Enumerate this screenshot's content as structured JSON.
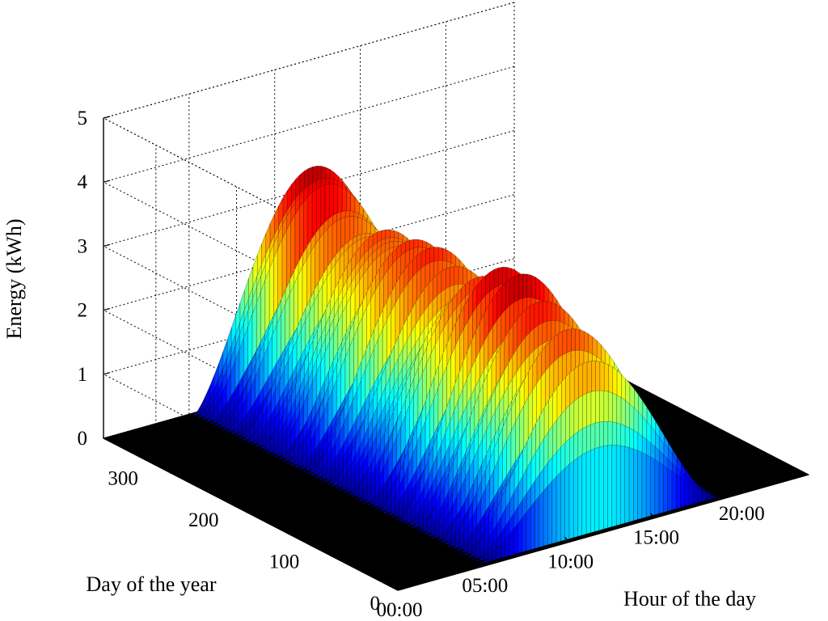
{
  "chart_data": {
    "type": "surface",
    "title": "",
    "zlabel": "Energy (kWh)",
    "ylabel": "Day of the year",
    "xlabel": "Hour of the day",
    "z_ticks": [
      "0",
      "1",
      "2",
      "3",
      "4",
      "5"
    ],
    "z_tick_values": [
      0,
      1,
      2,
      3,
      4,
      5
    ],
    "y_ticks": [
      "0",
      "100",
      "200",
      "300"
    ],
    "y_tick_values": [
      0,
      100,
      200,
      300
    ],
    "x_ticks": [
      "00:00",
      "05:00",
      "10:00",
      "15:00",
      "20:00"
    ],
    "x_tick_values": [
      0,
      5,
      10,
      15,
      20
    ],
    "xlim": [
      0,
      24
    ],
    "ylim": [
      0,
      365
    ],
    "zlim": [
      0,
      5
    ],
    "grid": true,
    "colormap": "jet",
    "floor_color": "#000000",
    "production_hours": [
      5,
      19
    ],
    "peak_hour": 12,
    "peak_by_day": [
      {
        "day": 5,
        "peak": 2.2
      },
      {
        "day": 30,
        "peak": 3.0
      },
      {
        "day": 60,
        "peak": 3.3
      },
      {
        "day": 90,
        "peak": 3.6
      },
      {
        "day": 120,
        "peak": 3.6
      },
      {
        "day": 150,
        "peak": 3.5
      },
      {
        "day": 180,
        "peak": 3.2
      },
      {
        "day": 210,
        "peak": 3.3
      },
      {
        "day": 240,
        "peak": 3.4
      },
      {
        "day": 270,
        "peak": 3.5
      },
      {
        "day": 300,
        "peak": 3.0
      },
      {
        "day": 330,
        "peak": 3.3
      },
      {
        "day": 360,
        "peak": 4.2
      }
    ]
  }
}
